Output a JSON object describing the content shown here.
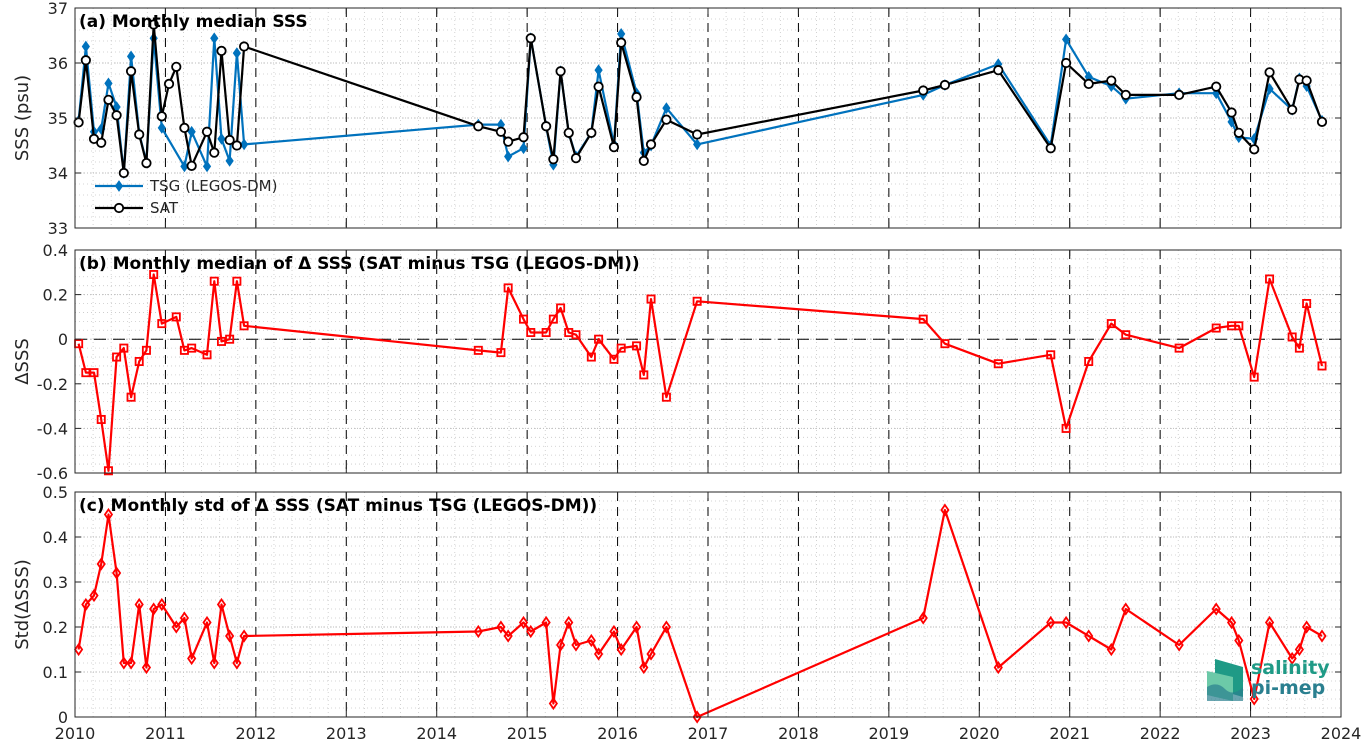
{
  "chart_data": [
    {
      "type": "line",
      "title": "(a) Monthly median SSS",
      "ylabel": "SSS (psu)",
      "xlim": [
        2010,
        2024
      ],
      "ylim": [
        33,
        37
      ],
      "yticks": [
        33,
        34,
        35,
        36,
        37
      ],
      "legend_position": "bottom-left",
      "series": [
        {
          "name": "TSG (LEGOS-DM)",
          "color": "#0072BD",
          "marker": "diamond",
          "x": [
            2010.04,
            2010.12,
            2010.21,
            2010.29,
            2010.37,
            2010.46,
            2010.54,
            2010.62,
            2010.71,
            2010.79,
            2010.87,
            2010.96,
            2011.21,
            2011.29,
            2011.46,
            2011.54,
            2011.62,
            2011.71,
            2011.79,
            2011.87,
            2014.46,
            2014.71,
            2014.79,
            2014.96,
            2015.04,
            2015.21,
            2015.29,
            2015.37,
            2015.46,
            2015.54,
            2015.71,
            2015.79,
            2015.96,
            2016.04,
            2016.21,
            2016.29,
            2016.37,
            2016.54,
            2016.88,
            2019.38,
            2019.62,
            2020.21,
            2020.79,
            2020.96,
            2021.21,
            2021.46,
            2021.62,
            2022.21,
            2022.62,
            2022.79,
            2022.87,
            2023.04,
            2023.21,
            2023.46,
            2023.54,
            2023.62,
            2023.79
          ],
          "y": [
            34.95,
            36.3,
            34.75,
            34.8,
            35.63,
            35.2,
            34.0,
            36.12,
            34.72,
            34.2,
            36.45,
            34.82,
            34.12,
            34.75,
            34.12,
            36.45,
            34.62,
            34.22,
            36.18,
            34.52,
            34.88,
            34.88,
            34.3,
            34.45,
            36.45,
            34.85,
            34.15,
            35.85,
            34.73,
            34.3,
            34.73,
            35.87,
            34.52,
            36.53,
            35.45,
            34.37,
            34.5,
            35.18,
            34.52,
            35.42,
            35.6,
            35.98,
            34.5,
            36.43,
            35.75,
            35.58,
            35.35,
            35.45,
            35.45,
            34.93,
            34.65,
            34.62,
            35.53,
            35.15,
            35.72,
            35.58,
            34.95
          ]
        },
        {
          "name": "SAT",
          "color": "#000000",
          "marker": "circle",
          "x": [
            2010.04,
            2010.12,
            2010.21,
            2010.29,
            2010.37,
            2010.46,
            2010.54,
            2010.62,
            2010.71,
            2010.79,
            2010.87,
            2010.96,
            2011.04,
            2011.12,
            2011.21,
            2011.29,
            2011.46,
            2011.54,
            2011.62,
            2011.71,
            2011.79,
            2011.87,
            2014.46,
            2014.71,
            2014.79,
            2014.96,
            2015.04,
            2015.21,
            2015.29,
            2015.37,
            2015.46,
            2015.54,
            2015.71,
            2015.79,
            2015.96,
            2016.04,
            2016.21,
            2016.29,
            2016.37,
            2016.54,
            2016.88,
            2019.38,
            2019.62,
            2020.21,
            2020.79,
            2020.96,
            2021.21,
            2021.46,
            2021.62,
            2022.21,
            2022.62,
            2022.79,
            2022.87,
            2023.04,
            2023.21,
            2023.46,
            2023.54,
            2023.62,
            2023.79
          ],
          "y": [
            34.92,
            36.05,
            34.62,
            34.55,
            35.33,
            35.05,
            34.0,
            35.85,
            34.7,
            34.18,
            36.7,
            35.03,
            35.62,
            35.93,
            34.82,
            34.13,
            34.75,
            34.37,
            36.22,
            34.6,
            34.5,
            36.3,
            34.85,
            34.75,
            34.57,
            34.65,
            36.45,
            34.85,
            34.25,
            35.85,
            34.73,
            34.27,
            34.73,
            35.57,
            34.47,
            36.37,
            35.38,
            34.22,
            34.52,
            34.97,
            34.7,
            35.5,
            35.6,
            35.87,
            34.45,
            36.0,
            35.62,
            35.68,
            35.42,
            35.42,
            35.57,
            35.1,
            34.73,
            34.43,
            35.83,
            35.15,
            35.7,
            35.68,
            34.93
          ]
        }
      ]
    },
    {
      "type": "line",
      "title": "(b) Monthly median of Δ SSS (SAT minus TSG (LEGOS-DM))",
      "ylabel": "ΔSSS",
      "xlim": [
        2010,
        2024
      ],
      "ylim": [
        -0.6,
        0.4
      ],
      "yticks": [
        -0.6,
        -0.4,
        -0.2,
        0,
        0.2,
        0.4
      ],
      "ytick_labels": [
        "-0.6",
        "-0.4",
        "-0.2",
        "0",
        "0.2",
        "0.4"
      ],
      "zero_line": true,
      "series": [
        {
          "name": "",
          "color": "#FF0000",
          "marker": "square",
          "x": [
            2010.04,
            2010.12,
            2010.21,
            2010.29,
            2010.37,
            2010.46,
            2010.54,
            2010.62,
            2010.71,
            2010.79,
            2010.87,
            2010.96,
            2011.12,
            2011.21,
            2011.29,
            2011.46,
            2011.54,
            2011.62,
            2011.71,
            2011.79,
            2011.87,
            2014.46,
            2014.71,
            2014.79,
            2014.96,
            2015.04,
            2015.21,
            2015.29,
            2015.37,
            2015.46,
            2015.54,
            2015.71,
            2015.79,
            2015.96,
            2016.04,
            2016.21,
            2016.29,
            2016.37,
            2016.54,
            2016.88,
            2019.38,
            2019.62,
            2020.21,
            2020.79,
            2020.96,
            2021.21,
            2021.46,
            2021.62,
            2022.21,
            2022.62,
            2022.79,
            2022.87,
            2023.04,
            2023.21,
            2023.46,
            2023.54,
            2023.62,
            2023.79
          ],
          "y": [
            -0.02,
            -0.15,
            -0.15,
            -0.36,
            -0.59,
            -0.08,
            -0.04,
            -0.26,
            -0.1,
            -0.05,
            0.29,
            0.07,
            0.1,
            -0.05,
            -0.04,
            -0.07,
            0.26,
            -0.01,
            0.0,
            0.26,
            0.06,
            -0.05,
            -0.06,
            0.23,
            0.09,
            0.03,
            0.03,
            0.09,
            0.14,
            0.03,
            0.02,
            -0.08,
            0.0,
            -0.09,
            -0.04,
            -0.03,
            -0.16,
            0.18,
            -0.26,
            0.17,
            0.09,
            -0.02,
            -0.11,
            -0.07,
            -0.4,
            -0.1,
            0.07,
            0.02,
            -0.04,
            0.05,
            0.06,
            0.06,
            -0.17,
            0.27,
            0.01,
            -0.04,
            0.16,
            -0.12
          ]
        }
      ]
    },
    {
      "type": "line",
      "title": "(c) Monthly std of Δ SSS (SAT minus TSG (LEGOS-DM))",
      "ylabel": "Std(ΔSSS)",
      "xlim": [
        2010,
        2024
      ],
      "ylim": [
        0,
        0.5
      ],
      "yticks": [
        0,
        0.1,
        0.2,
        0.3,
        0.4,
        0.5
      ],
      "ytick_labels": [
        "0",
        "0.1",
        "0.2",
        "0.3",
        "0.4",
        "0.5"
      ],
      "xticks": [
        2010,
        2011,
        2012,
        2013,
        2014,
        2015,
        2016,
        2017,
        2018,
        2019,
        2020,
        2021,
        2022,
        2023,
        2024
      ],
      "series": [
        {
          "name": "",
          "color": "#FF0000",
          "marker": "diamond",
          "x": [
            2010.04,
            2010.12,
            2010.21,
            2010.29,
            2010.37,
            2010.46,
            2010.54,
            2010.62,
            2010.71,
            2010.79,
            2010.87,
            2010.96,
            2011.12,
            2011.21,
            2011.29,
            2011.46,
            2011.54,
            2011.62,
            2011.71,
            2011.79,
            2011.87,
            2014.46,
            2014.71,
            2014.79,
            2014.96,
            2015.04,
            2015.21,
            2015.29,
            2015.37,
            2015.46,
            2015.54,
            2015.71,
            2015.79,
            2015.96,
            2016.04,
            2016.21,
            2016.29,
            2016.37,
            2016.54,
            2016.88,
            2019.38,
            2019.62,
            2020.21,
            2020.79,
            2020.96,
            2021.21,
            2021.46,
            2021.62,
            2022.21,
            2022.62,
            2022.79,
            2022.87,
            2023.04,
            2023.21,
            2023.46,
            2023.54,
            2023.62,
            2023.79
          ],
          "y": [
            0.15,
            0.25,
            0.27,
            0.34,
            0.45,
            0.32,
            0.12,
            0.12,
            0.25,
            0.11,
            0.24,
            0.25,
            0.2,
            0.22,
            0.13,
            0.21,
            0.12,
            0.25,
            0.18,
            0.12,
            0.18,
            0.19,
            0.2,
            0.18,
            0.21,
            0.19,
            0.21,
            0.03,
            0.16,
            0.21,
            0.16,
            0.17,
            0.14,
            0.19,
            0.15,
            0.2,
            0.11,
            0.14,
            0.2,
            0.0,
            0.22,
            0.46,
            0.11,
            0.21,
            0.21,
            0.18,
            0.15,
            0.24,
            0.16,
            0.24,
            0.21,
            0.17,
            0.04,
            0.21,
            0.13,
            0.15,
            0.2,
            0.18
          ]
        }
      ]
    }
  ],
  "logo": {
    "line1": "salinity",
    "line2": "pi-mep",
    "colors": [
      "#1f9a86",
      "#2a7f8f",
      "#6cc9a8"
    ]
  }
}
